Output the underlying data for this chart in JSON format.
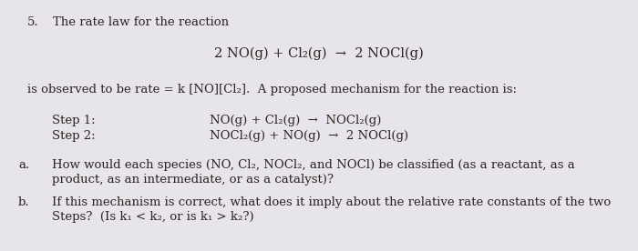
{
  "background_color": "#e8e4ec",
  "text_color": "#2a2520",
  "title_number": "5.",
  "title_text": "The rate law for the reaction",
  "centered_equation": "2 NO(g) + Cl₂(g)  →  2 NOCl(g)",
  "observed_text": "is observed to be rate = k [NO][Cl₂].  A proposed mechanism for the reaction is:",
  "step1_label": "Step 1:",
  "step1_eq": "NO(g) + Cl₂(g)  →  NOCl₂(g)",
  "step2_label": "Step 2:",
  "step2_eq": "NOCl₂(g) + NO(g)  →  2 NOCl(g)",
  "part_a_label": "a.",
  "part_a_line1": "How would each species (NO, Cl₂, NOCl₂, and NOCl) be classified (as a reactant, as a",
  "part_a_line2": "product, as an intermediate, or as a catalyst)?",
  "part_b_label": "b.",
  "part_b_line1": "If this mechanism is correct, what does it imply about the relative rate constants of the two",
  "part_b_line2": "Steps?  (Is k₁ < k₂, or is k₁ > k₂?)",
  "fontsize_main": 9.5,
  "fontsize_eq": 10.5
}
